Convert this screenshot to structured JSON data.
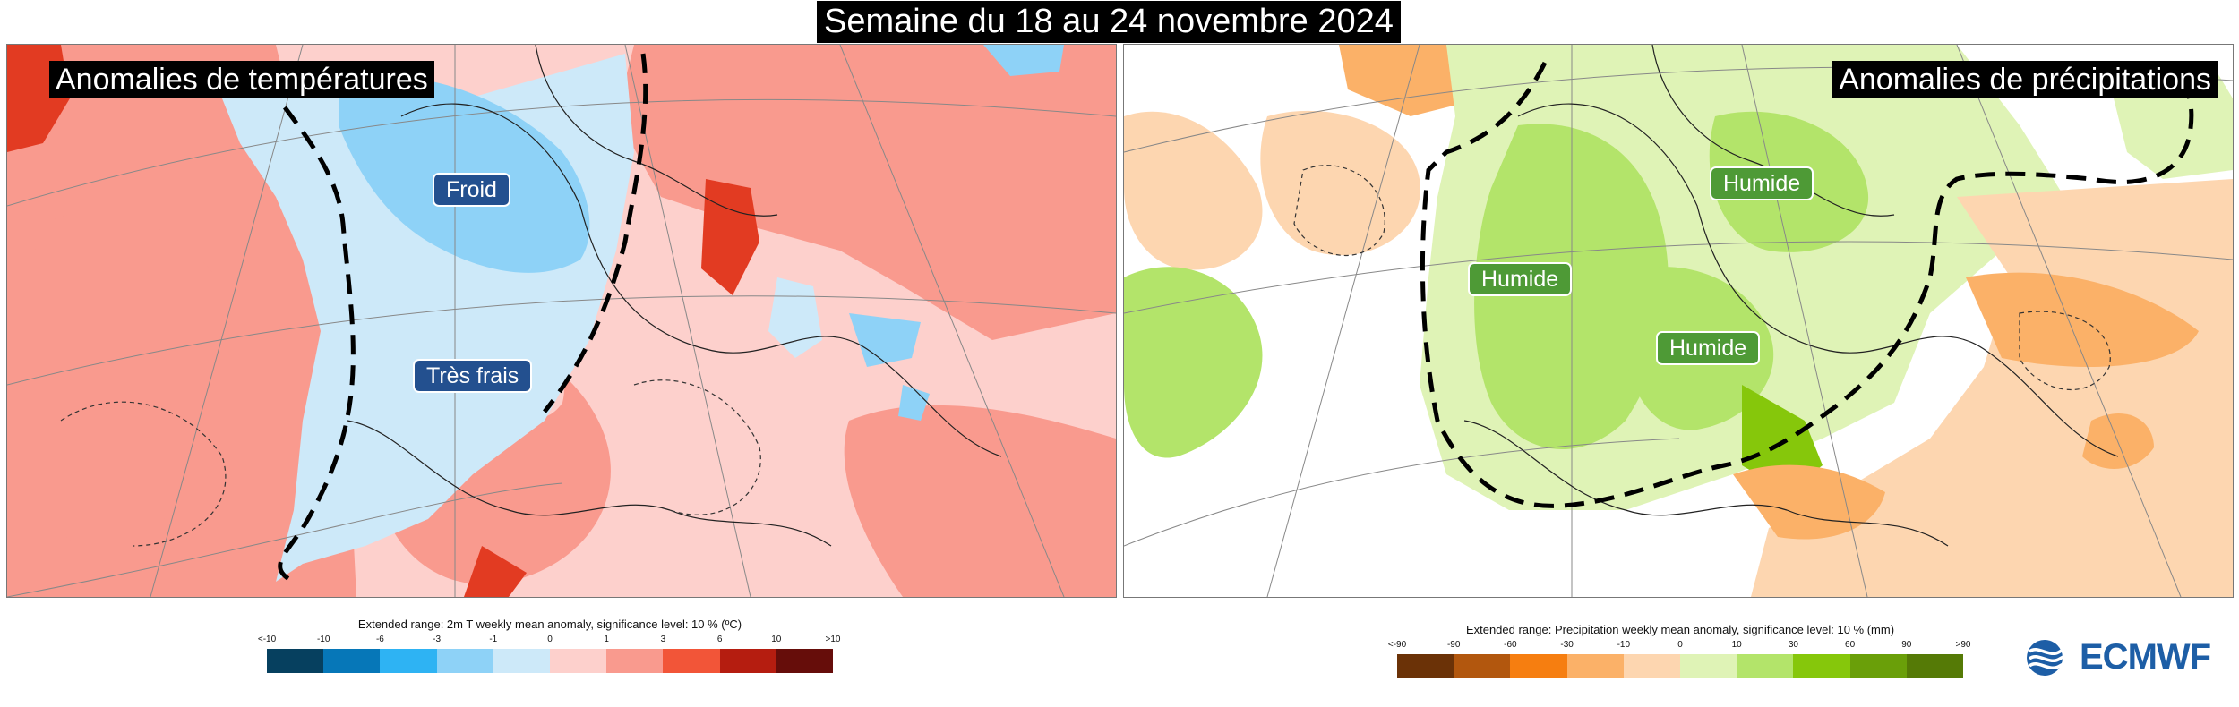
{
  "title": "Semaine du 18 au 24 novembre 2024",
  "temperature_map": {
    "title": "Anomalies de températures",
    "tags": [
      "Froid",
      "Très frais"
    ]
  },
  "precipitation_map": {
    "title": "Anomalies de précipitations",
    "tags": [
      "Humide",
      "Humide",
      "Humide"
    ]
  },
  "temperature_legend": {
    "caption": "Extended range: 2m T weekly mean anomaly, significance level: 10 % (ºC)",
    "ticks": [
      "<-10",
      "-10",
      "-6",
      "-3",
      "-1",
      "0",
      "1",
      "3",
      "6",
      "10",
      ">10"
    ],
    "colors": [
      "#06405f",
      "#0677b8",
      "#2eb3f3",
      "#8ed2f7",
      "#cde9f9",
      "#fdd0cc",
      "#f99a8e",
      "#f25538",
      "#b51d10",
      "#660d0a"
    ]
  },
  "precipitation_legend": {
    "caption": "Extended range: Precipitation weekly mean anomaly, significance level: 10 % (mm)",
    "ticks": [
      "<-90",
      "-90",
      "-60",
      "-30",
      "-10",
      "0",
      "10",
      "30",
      "60",
      "90",
      ">90"
    ],
    "colors": [
      "#6b3207",
      "#b2570e",
      "#f67e10",
      "#fbb168",
      "#fdd6b0",
      "#dff3b6",
      "#b3e46a",
      "#86c70b",
      "#6a9f09",
      "#557a06"
    ]
  },
  "logo": "ECMWF",
  "colors": {
    "warm_strong": "#f25538",
    "warm_moderate": "#f99a8e",
    "warm_weak": "#fdd0cc",
    "cold_weak": "#cde9f9",
    "cold_moderate": "#8ed2f7",
    "wet_weak": "#dff3b6",
    "wet_moderate": "#b3e46a",
    "dry_weak": "#fdd6b0",
    "dry_moderate": "#fbb168"
  }
}
